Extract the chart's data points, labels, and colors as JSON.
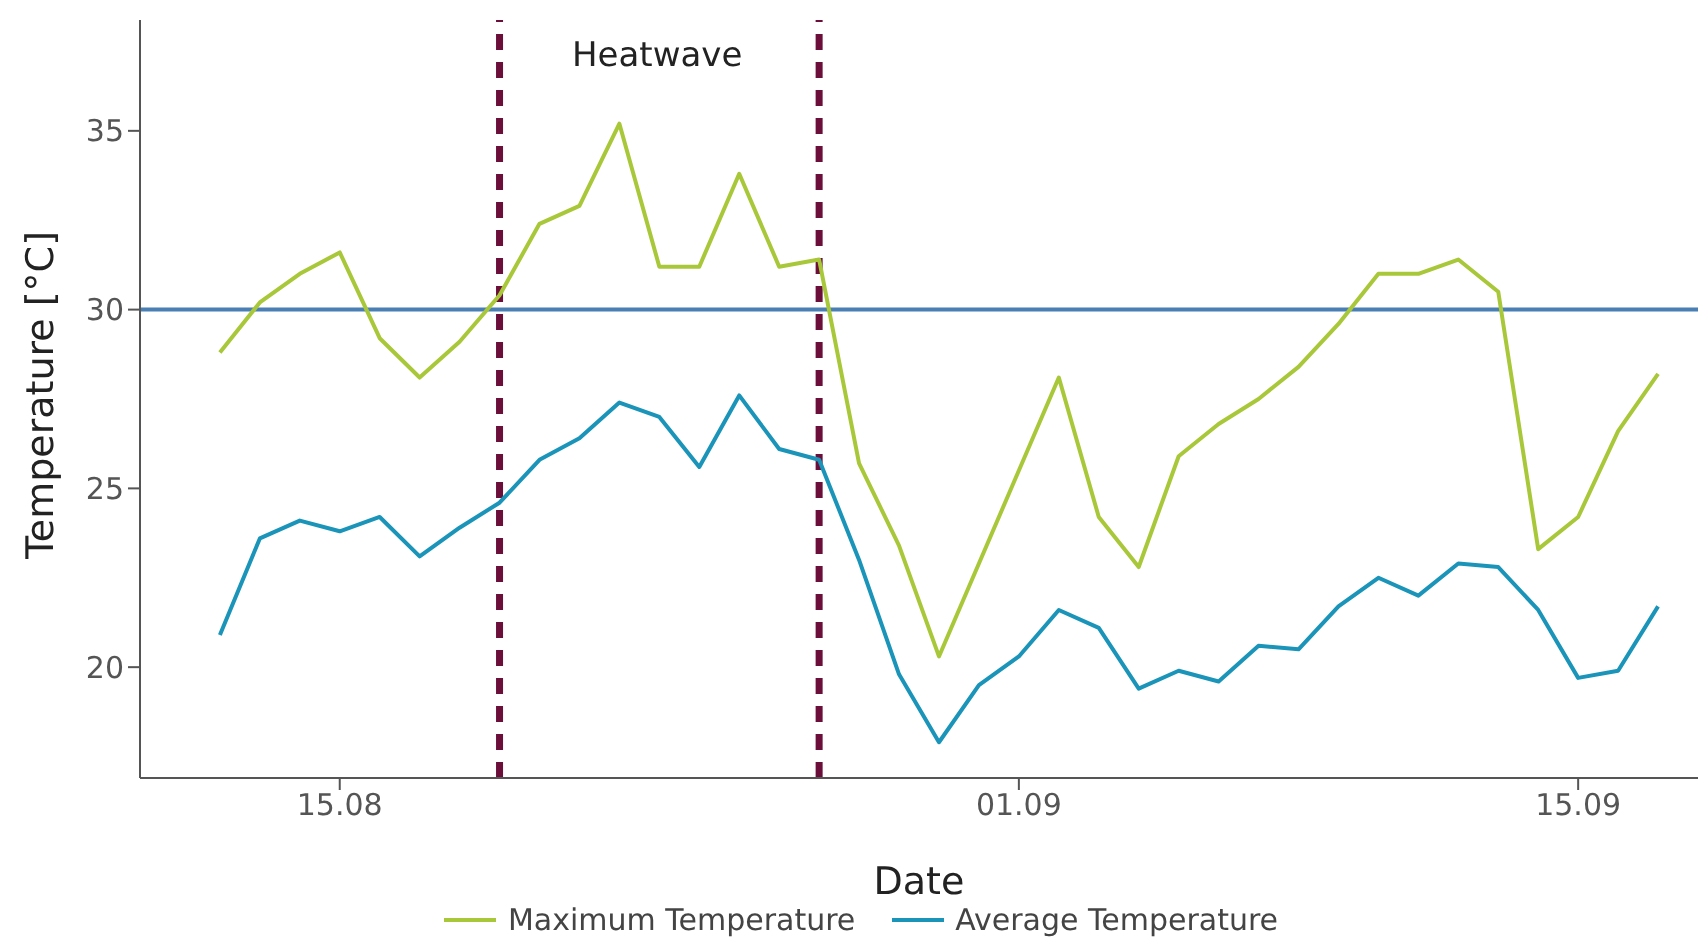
{
  "chart_data": {
    "type": "line",
    "xlabel": "Date",
    "ylabel": "Temperature [°C]",
    "x": [
      "--08-12",
      "--08-13",
      "--08-14",
      "--08-15",
      "--08-16",
      "--08-17",
      "--08-18",
      "--08-19",
      "--08-20",
      "--08-21",
      "--08-22",
      "--08-23",
      "--08-24",
      "--08-25",
      "--08-26",
      "--08-27",
      "--08-28",
      "--08-29",
      "--08-30",
      "--08-31",
      "--09-01",
      "--09-02",
      "--09-03",
      "--09-04",
      "--09-05",
      "--09-06",
      "--09-07",
      "--09-08",
      "--09-09",
      "--09-10",
      "--09-11",
      "--09-12",
      "--09-13",
      "--09-14",
      "--09-15",
      "--09-16",
      "--09-17"
    ],
    "series": [
      {
        "name": "Maximum Temperature",
        "color": "#a8c83a",
        "values": [
          28.8,
          30.2,
          31.0,
          31.6,
          29.2,
          28.1,
          29.1,
          30.4,
          32.4,
          32.9,
          35.2,
          31.2,
          31.2,
          33.8,
          31.2,
          31.4,
          25.7,
          23.4,
          20.3,
          22.9,
          25.5,
          28.1,
          24.2,
          22.8,
          25.9,
          26.8,
          27.5,
          28.4,
          29.6,
          31.0,
          31.0,
          31.4,
          30.5,
          23.3,
          24.2,
          26.6,
          28.2
        ]
      },
      {
        "name": "Average Temperature",
        "color": "#1a94b8",
        "values": [
          20.9,
          23.6,
          24.1,
          23.8,
          24.2,
          23.1,
          23.9,
          24.6,
          25.8,
          26.4,
          27.4,
          27.0,
          25.6,
          27.6,
          26.1,
          25.8,
          23.0,
          19.8,
          17.9,
          19.5,
          20.3,
          21.6,
          21.1,
          19.4,
          19.9,
          19.6,
          20.6,
          20.5,
          21.7,
          22.5,
          22.0,
          22.9,
          22.8,
          21.6,
          19.7,
          19.9,
          21.7
        ]
      }
    ],
    "xlim": [
      "--08-10",
      "--09-18"
    ],
    "xticks": [
      {
        "value": "--08-15",
        "label": "15.08"
      },
      {
        "value": "--09-01",
        "label": "01.09"
      },
      {
        "value": "--09-15",
        "label": "15.09"
      }
    ],
    "ylim": [
      16.9,
      38.1
    ],
    "yticks": [
      20,
      25,
      30,
      35
    ],
    "ref_lines": [
      {
        "axis": "y",
        "value": 30,
        "color": "#4a7fb5",
        "line_style": "solid"
      },
      {
        "axis": "x",
        "value": "--08-19",
        "color": "#6b0f3a",
        "line_style": "dashed"
      },
      {
        "axis": "x",
        "value": "--08-27",
        "color": "#6b0f3a",
        "line_style": "dashed"
      }
    ],
    "annotations": [
      "Heatwave"
    ],
    "grid": false,
    "legend": "bottom",
    "marker": "none",
    "line_style": "solid"
  }
}
